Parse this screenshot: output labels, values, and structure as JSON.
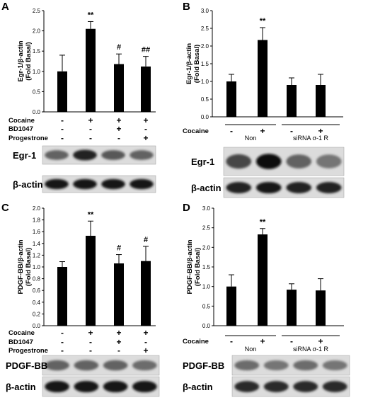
{
  "panels": [
    {
      "letter": "A",
      "chart_data": {
        "type": "bar",
        "ylabel": "Egr-1/β-actin\n(Fold Basal)",
        "ylim": [
          0,
          2.5
        ],
        "yticks": [
          "0.0",
          "0.5",
          "1.0",
          "1.5",
          "2.0",
          "2.5"
        ],
        "series": [
          {
            "values": [
              1.0,
              2.05,
              1.18,
              1.12
            ],
            "errors": [
              0.4,
              0.18,
              0.25,
              0.25
            ],
            "annotations": [
              "",
              "**",
              "#",
              "##"
            ]
          }
        ]
      },
      "conditions": [
        {
          "label": "Cocaine",
          "signs": [
            "-",
            "+",
            "+",
            "+"
          ]
        },
        {
          "label": "BD1047",
          "signs": [
            "-",
            "-",
            "+",
            "-"
          ]
        },
        {
          "label": "Progestrone",
          "signs": [
            "-",
            "-",
            "-",
            "+"
          ]
        }
      ],
      "groups": [],
      "blots": [
        "Egr-1",
        "β-actin"
      ]
    },
    {
      "letter": "B",
      "chart_data": {
        "type": "bar",
        "ylabel": "Egr-1/β-actin\n(Fold Basal)",
        "ylim": [
          0,
          3.0
        ],
        "yticks": [
          "0.0",
          "0.5",
          "1.0",
          "1.5",
          "2.0",
          "2.5",
          "3.0"
        ],
        "series": [
          {
            "values": [
              1.0,
              2.17,
              0.9,
              0.9
            ],
            "errors": [
              0.2,
              0.35,
              0.2,
              0.3
            ],
            "annotations": [
              "",
              "**",
              "",
              ""
            ]
          }
        ]
      },
      "conditions": [
        {
          "label": "Cocaine",
          "signs": [
            "-",
            "+",
            "-",
            "+"
          ]
        }
      ],
      "groups": [
        "Non",
        "siRNA σ-1 R"
      ],
      "blots": [
        "Egr-1",
        "β-actin"
      ]
    },
    {
      "letter": "C",
      "chart_data": {
        "type": "bar",
        "ylabel": "PDGF-BB/β-actin\n(Fold Basal)",
        "ylim": [
          0,
          2.0
        ],
        "yticks": [
          "0.0",
          "0.2",
          "0.4",
          "0.6",
          "0.8",
          "1.0",
          "1.2",
          "1.4",
          "1.6",
          "1.8",
          "2.0"
        ],
        "series": [
          {
            "values": [
              1.0,
              1.53,
              1.06,
              1.1
            ],
            "errors": [
              0.09,
              0.25,
              0.15,
              0.25
            ],
            "annotations": [
              "",
              "**",
              "#",
              "#"
            ]
          }
        ]
      },
      "conditions": [
        {
          "label": "Cocaine",
          "signs": [
            "-",
            "+",
            "+",
            "+"
          ]
        },
        {
          "label": "BD1047",
          "signs": [
            "-",
            "-",
            "+",
            "-"
          ]
        },
        {
          "label": "Progestrone",
          "signs": [
            "-",
            "-",
            "-",
            "+"
          ]
        }
      ],
      "groups": [],
      "blots": [
        "PDGF-BB",
        "β-actin"
      ]
    },
    {
      "letter": "D",
      "chart_data": {
        "type": "bar",
        "ylabel": "PDGF-BB/β-actin\n(Fold Basal)",
        "ylim": [
          0,
          3.0
        ],
        "yticks": [
          "0.0",
          "0.5",
          "1.0",
          "1.5",
          "2.0",
          "2.5",
          "3.0"
        ],
        "series": [
          {
            "values": [
              1.0,
              2.33,
              0.92,
              0.9
            ],
            "errors": [
              0.3,
              0.15,
              0.15,
              0.3
            ],
            "annotations": [
              "",
              "**",
              "",
              ""
            ]
          }
        ]
      },
      "conditions": [
        {
          "label": "Cocaine",
          "signs": [
            "-",
            "+",
            "-",
            "+"
          ]
        }
      ],
      "groups": [
        "Non",
        "siRNA σ-1 R"
      ],
      "blots": [
        "PDGF-BB",
        "β-actin"
      ]
    }
  ]
}
